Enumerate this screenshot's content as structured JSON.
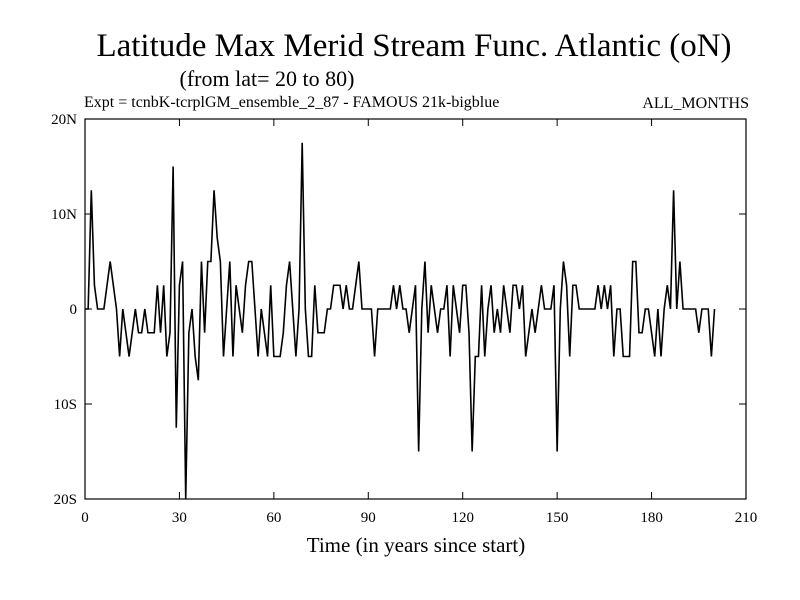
{
  "chart_data": {
    "type": "line",
    "title": "Latitude Max Merid Stream Func. Atlantic (oN)",
    "subtitle": "(from lat= 20 to 80)",
    "experiment": "Expt = tcnbK-tcrplGM_ensemble_2_87 - FAMOUS 21k-bigblue",
    "months": "ALL_MONTHS",
    "xlabel": "Time (in years since start)",
    "ylabel": "",
    "xlim": [
      0,
      210
    ],
    "ylim": [
      -20,
      20
    ],
    "xticks": [
      0,
      30,
      60,
      90,
      120,
      150,
      180,
      210
    ],
    "xtick_labels": [
      "0",
      "30",
      "60",
      "90",
      "120",
      "150",
      "180",
      "210"
    ],
    "yticks": [
      -20,
      -10,
      0,
      10,
      20
    ],
    "ytick_labels": [
      "20S",
      "10S",
      "0",
      "10N",
      "20N"
    ],
    "grid": false,
    "series": [
      {
        "x_start": 0,
        "x_step": 1,
        "values": [
          0,
          0,
          12.5,
          2.5,
          0,
          0,
          0,
          2.5,
          5,
          2.5,
          0,
          -5,
          0,
          -2.5,
          -5,
          -2.5,
          0,
          -2.5,
          -2.5,
          0,
          -2.5,
          -2.5,
          -2.5,
          2.5,
          -2.5,
          2.5,
          -5,
          -2.5,
          15,
          -12.5,
          2.5,
          5,
          -20,
          -2.5,
          0,
          -5,
          -7.5,
          5,
          -2.5,
          5,
          5,
          12.5,
          7.5,
          5,
          -5,
          0,
          5,
          -5,
          2.5,
          0,
          -2.5,
          2.5,
          5,
          5,
          0,
          -5,
          0,
          -2.5,
          -5,
          2.5,
          -5,
          -5,
          -5,
          -2.5,
          2.5,
          5,
          0,
          -5,
          0,
          17.5,
          0,
          -5,
          -5,
          2.5,
          -2.5,
          -2.5,
          -2.5,
          0,
          0,
          2.5,
          2.5,
          2.5,
          0,
          2.5,
          0,
          0,
          2.5,
          5,
          0,
          0,
          0,
          0,
          -5,
          0,
          0,
          0,
          0,
          0,
          2.5,
          0,
          2.5,
          0,
          0,
          -2.5,
          0,
          2.5,
          -15,
          0,
          5,
          -2.5,
          2.5,
          0,
          -2.5,
          0,
          0,
          2.5,
          -5,
          2.5,
          0,
          -2.5,
          2.5,
          2.5,
          -2.5,
          -15,
          -5,
          -5,
          2.5,
          -5,
          0,
          2.5,
          -2.5,
          0,
          -2.5,
          2.5,
          0,
          -2.5,
          2.5,
          2.5,
          0,
          2.5,
          -5,
          -2.5,
          0,
          -2.5,
          0,
          2.5,
          0,
          0,
          0,
          2.5,
          -15,
          0,
          5,
          2.5,
          -5,
          2.5,
          2.5,
          0,
          0,
          0,
          0,
          0,
          0,
          2.5,
          0,
          2.5,
          0,
          2.5,
          -5,
          0,
          0,
          -5,
          -5,
          -5,
          5,
          5,
          -2.5,
          -2.5,
          0,
          0,
          -2.5,
          -5,
          0,
          -5,
          0,
          2.5,
          0,
          12.5,
          0,
          5,
          0,
          0,
          0,
          0,
          0,
          -2.5,
          0,
          0,
          0,
          -5,
          0
        ]
      }
    ]
  }
}
